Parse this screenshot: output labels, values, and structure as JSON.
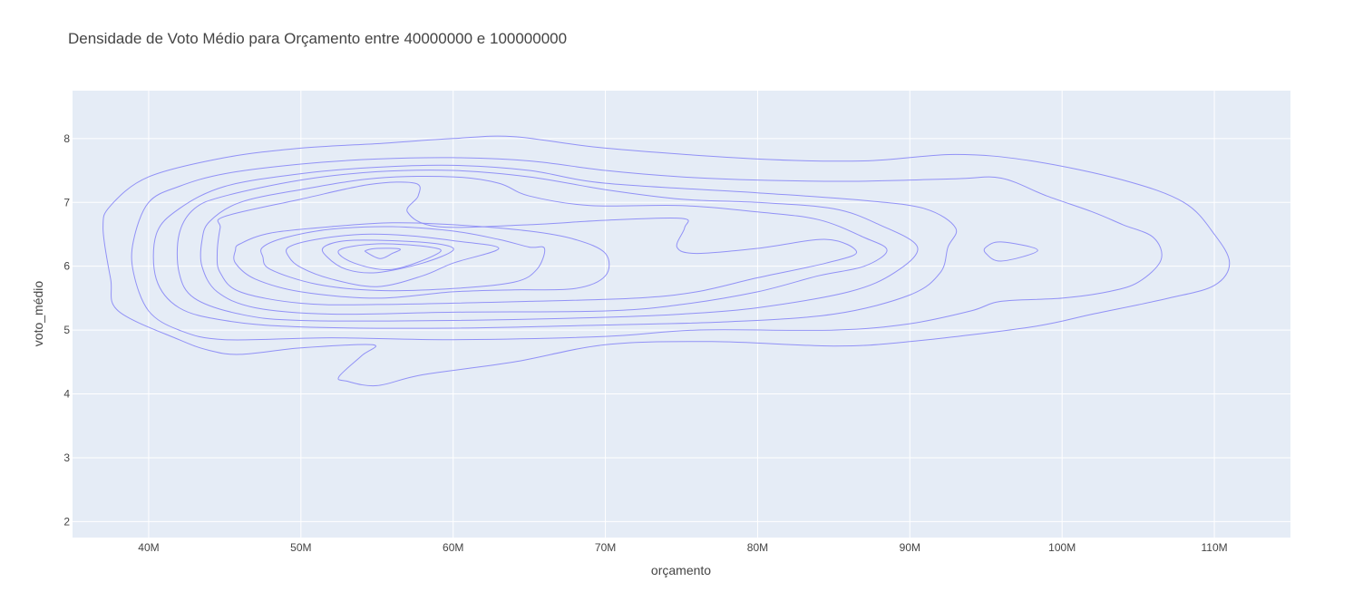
{
  "chart_data": {
    "type": "contour",
    "title": "Densidade de Voto Médio para Orçamento entre 40000000 e 100000000",
    "xlabel": "orçamento",
    "ylabel": "voto_médio",
    "xlim": [
      35000000,
      115000000
    ],
    "ylim": [
      1.75,
      8.75
    ],
    "x_ticks": [
      {
        "value": 40000000,
        "label": "40M"
      },
      {
        "value": 50000000,
        "label": "50M"
      },
      {
        "value": 60000000,
        "label": "60M"
      },
      {
        "value": 70000000,
        "label": "70M"
      },
      {
        "value": 80000000,
        "label": "80M"
      },
      {
        "value": 90000000,
        "label": "90M"
      },
      {
        "value": 100000000,
        "label": "100M"
      },
      {
        "value": 110000000,
        "label": "110M"
      }
    ],
    "y_ticks": [
      {
        "value": 2,
        "label": "2"
      },
      {
        "value": 3,
        "label": "3"
      },
      {
        "value": 4,
        "label": "4"
      },
      {
        "value": 5,
        "label": "5"
      },
      {
        "value": 6,
        "label": "6"
      },
      {
        "value": 7,
        "label": "7"
      },
      {
        "value": 8,
        "label": "8"
      }
    ],
    "grid": true,
    "line_color": "#8c8cf5",
    "background_color": "#e5ecf6",
    "contours": [
      {
        "level": 1,
        "points": [
          [
            37000000,
            6.6
          ],
          [
            37500000,
            6.95
          ],
          [
            40000000,
            7.4
          ],
          [
            45000000,
            7.7
          ],
          [
            50000000,
            7.85
          ],
          [
            55000000,
            7.92
          ],
          [
            60000000,
            8.0
          ],
          [
            64000000,
            8.03
          ],
          [
            70000000,
            7.85
          ],
          [
            80000000,
            7.68
          ],
          [
            87000000,
            7.65
          ],
          [
            93000000,
            7.75
          ],
          [
            98000000,
            7.65
          ],
          [
            104000000,
            7.35
          ],
          [
            108000000,
            7.0
          ],
          [
            110000000,
            6.5
          ],
          [
            111000000,
            6.05
          ],
          [
            110000000,
            5.7
          ],
          [
            107000000,
            5.5
          ],
          [
            102000000,
            5.25
          ],
          [
            98000000,
            5.05
          ],
          [
            90000000,
            4.82
          ],
          [
            85000000,
            4.75
          ],
          [
            77000000,
            4.82
          ],
          [
            70000000,
            4.77
          ],
          [
            64000000,
            4.5
          ],
          [
            58000000,
            4.3
          ],
          [
            55000000,
            4.13
          ],
          [
            53000000,
            4.2
          ],
          [
            52500000,
            4.27
          ],
          [
            54000000,
            4.6
          ],
          [
            54700000,
            4.77
          ],
          [
            50000000,
            4.72
          ],
          [
            46000000,
            4.62
          ],
          [
            44000000,
            4.68
          ],
          [
            42000000,
            4.85
          ],
          [
            38000000,
            5.3
          ],
          [
            37500000,
            5.8
          ],
          [
            37000000,
            6.6
          ]
        ]
      },
      {
        "level": 2,
        "points": [
          [
            39000000,
            6.4
          ],
          [
            40000000,
            7.0
          ],
          [
            42000000,
            7.25
          ],
          [
            45000000,
            7.45
          ],
          [
            50000000,
            7.6
          ],
          [
            55000000,
            7.68
          ],
          [
            60000000,
            7.7
          ],
          [
            65000000,
            7.65
          ],
          [
            70000000,
            7.5
          ],
          [
            75000000,
            7.4
          ],
          [
            80000000,
            7.35
          ],
          [
            86000000,
            7.33
          ],
          [
            93000000,
            7.37
          ],
          [
            96000000,
            7.38
          ],
          [
            99000000,
            7.1
          ],
          [
            102000000,
            6.85
          ],
          [
            104000000,
            6.65
          ],
          [
            106000000,
            6.45
          ],
          [
            106500000,
            6.1
          ],
          [
            105000000,
            5.75
          ],
          [
            103000000,
            5.6
          ],
          [
            100000000,
            5.5
          ],
          [
            96000000,
            5.45
          ],
          [
            94000000,
            5.3
          ],
          [
            90000000,
            5.1
          ],
          [
            85000000,
            5.0
          ],
          [
            76000000,
            5.0
          ],
          [
            70000000,
            4.9
          ],
          [
            60000000,
            4.85
          ],
          [
            52000000,
            4.88
          ],
          [
            45000000,
            4.85
          ],
          [
            42000000,
            5.0
          ],
          [
            40000000,
            5.3
          ],
          [
            39000000,
            5.9
          ],
          [
            39000000,
            6.4
          ]
        ]
      },
      {
        "level": 3,
        "points": [
          [
            95000000,
            6.3
          ],
          [
            96000000,
            6.38
          ],
          [
            98400000,
            6.25
          ],
          [
            96000000,
            6.08
          ],
          [
            95000000,
            6.2
          ],
          [
            95000000,
            6.3
          ]
        ]
      },
      {
        "level": 4,
        "points": [
          [
            40500000,
            6.5
          ],
          [
            42000000,
            6.9
          ],
          [
            45000000,
            7.25
          ],
          [
            50000000,
            7.45
          ],
          [
            55000000,
            7.55
          ],
          [
            60000000,
            7.58
          ],
          [
            65000000,
            7.5
          ],
          [
            70000000,
            7.3
          ],
          [
            80000000,
            7.15
          ],
          [
            87000000,
            7.03
          ],
          [
            91000000,
            6.9
          ],
          [
            93000000,
            6.6
          ],
          [
            92500000,
            6.3
          ],
          [
            92000000,
            5.9
          ],
          [
            90000000,
            5.55
          ],
          [
            85000000,
            5.25
          ],
          [
            78000000,
            5.13
          ],
          [
            70000000,
            5.08
          ],
          [
            60000000,
            5.03
          ],
          [
            50000000,
            5.05
          ],
          [
            45000000,
            5.15
          ],
          [
            42000000,
            5.35
          ],
          [
            40500000,
            5.8
          ],
          [
            40500000,
            6.5
          ]
        ]
      },
      {
        "level": 5,
        "points": [
          [
            42000000,
            6.5
          ],
          [
            43000000,
            6.9
          ],
          [
            45000000,
            7.1
          ],
          [
            50000000,
            7.35
          ],
          [
            55000000,
            7.48
          ],
          [
            60000000,
            7.5
          ],
          [
            65000000,
            7.4
          ],
          [
            70000000,
            7.2
          ],
          [
            75000000,
            7.05
          ],
          [
            80000000,
            7.0
          ],
          [
            85000000,
            6.9
          ],
          [
            88000000,
            6.65
          ],
          [
            90500000,
            6.3
          ],
          [
            89000000,
            5.9
          ],
          [
            86000000,
            5.6
          ],
          [
            80000000,
            5.35
          ],
          [
            75000000,
            5.25
          ],
          [
            70000000,
            5.2
          ],
          [
            60000000,
            5.15
          ],
          [
            50000000,
            5.15
          ],
          [
            46000000,
            5.25
          ],
          [
            43000000,
            5.5
          ],
          [
            42000000,
            5.9
          ],
          [
            42000000,
            6.5
          ]
        ]
      },
      {
        "level": 6,
        "points": [
          [
            43500000,
            6.4
          ],
          [
            44000000,
            6.7
          ],
          [
            46000000,
            7.0
          ],
          [
            50000000,
            7.2
          ],
          [
            55000000,
            7.38
          ],
          [
            60000000,
            7.4
          ],
          [
            63000000,
            7.3
          ],
          [
            65000000,
            7.1
          ],
          [
            69000000,
            6.95
          ],
          [
            75000000,
            6.95
          ],
          [
            80000000,
            6.85
          ],
          [
            84000000,
            6.73
          ],
          [
            87000000,
            6.45
          ],
          [
            88500000,
            6.25
          ],
          [
            87000000,
            6.0
          ],
          [
            84000000,
            5.85
          ],
          [
            80000000,
            5.6
          ],
          [
            75000000,
            5.4
          ],
          [
            70000000,
            5.3
          ],
          [
            60000000,
            5.28
          ],
          [
            52000000,
            5.25
          ],
          [
            47000000,
            5.35
          ],
          [
            44500000,
            5.6
          ],
          [
            43500000,
            6.0
          ],
          [
            43500000,
            6.4
          ]
        ]
      },
      {
        "level": 7,
        "points": [
          [
            44500000,
            6.2
          ],
          [
            44700000,
            6.6
          ],
          [
            45000000,
            6.78
          ],
          [
            50000000,
            7.05
          ],
          [
            54500000,
            7.28
          ],
          [
            57500000,
            7.3
          ],
          [
            57700000,
            7.1
          ],
          [
            57000000,
            6.85
          ],
          [
            59000000,
            6.62
          ],
          [
            65000000,
            6.65
          ],
          [
            70000000,
            6.72
          ],
          [
            75000000,
            6.75
          ],
          [
            75200000,
            6.6
          ],
          [
            74700000,
            6.3
          ],
          [
            76000000,
            6.2
          ],
          [
            80000000,
            6.28
          ],
          [
            84500000,
            6.42
          ],
          [
            86500000,
            6.22
          ],
          [
            84500000,
            6.05
          ],
          [
            80000000,
            5.82
          ],
          [
            76000000,
            5.6
          ],
          [
            72000000,
            5.5
          ],
          [
            65000000,
            5.45
          ],
          [
            55000000,
            5.4
          ],
          [
            50000000,
            5.42
          ],
          [
            46000000,
            5.6
          ],
          [
            44700000,
            5.9
          ],
          [
            44500000,
            6.2
          ]
        ]
      },
      {
        "level": 8,
        "points": [
          [
            45700000,
            6.25
          ],
          [
            46000000,
            6.35
          ],
          [
            48000000,
            6.52
          ],
          [
            52000000,
            6.62
          ],
          [
            56000000,
            6.68
          ],
          [
            60000000,
            6.65
          ],
          [
            65000000,
            6.55
          ],
          [
            68000000,
            6.42
          ],
          [
            70000000,
            6.2
          ],
          [
            70000000,
            5.85
          ],
          [
            68000000,
            5.65
          ],
          [
            64000000,
            5.63
          ],
          [
            60000000,
            5.6
          ],
          [
            55000000,
            5.5
          ],
          [
            50000000,
            5.6
          ],
          [
            47000000,
            5.8
          ],
          [
            45700000,
            6.05
          ],
          [
            45700000,
            6.25
          ]
        ]
      },
      {
        "level": 9,
        "points": [
          [
            47500000,
            6.3
          ],
          [
            49000000,
            6.45
          ],
          [
            52000000,
            6.58
          ],
          [
            56000000,
            6.62
          ],
          [
            60000000,
            6.55
          ],
          [
            63000000,
            6.42
          ],
          [
            65000000,
            6.3
          ],
          [
            66000000,
            6.28
          ],
          [
            65500000,
            5.95
          ],
          [
            64000000,
            5.75
          ],
          [
            60000000,
            5.65
          ],
          [
            55000000,
            5.62
          ],
          [
            51000000,
            5.72
          ],
          [
            48000000,
            5.95
          ],
          [
            47500000,
            6.15
          ],
          [
            47500000,
            6.3
          ]
        ]
      },
      {
        "level": 10,
        "points": [
          [
            49200000,
            6.3
          ],
          [
            51000000,
            6.42
          ],
          [
            54000000,
            6.5
          ],
          [
            57000000,
            6.48
          ],
          [
            60000000,
            6.4
          ],
          [
            63000000,
            6.28
          ],
          [
            60000000,
            6.05
          ],
          [
            58000000,
            5.85
          ],
          [
            55000000,
            5.68
          ],
          [
            52000000,
            5.8
          ],
          [
            50000000,
            5.98
          ],
          [
            49200000,
            6.15
          ],
          [
            49200000,
            6.3
          ]
        ]
      },
      {
        "level": 11,
        "points": [
          [
            51500000,
            6.3
          ],
          [
            53000000,
            6.4
          ],
          [
            56000000,
            6.4
          ],
          [
            59000000,
            6.35
          ],
          [
            60000000,
            6.25
          ],
          [
            58000000,
            6.05
          ],
          [
            55000000,
            5.9
          ],
          [
            53000000,
            5.95
          ],
          [
            51700000,
            6.15
          ],
          [
            51500000,
            6.3
          ]
        ]
      },
      {
        "level": 12,
        "points": [
          [
            52500000,
            6.25
          ],
          [
            55000000,
            6.35
          ],
          [
            58500000,
            6.3
          ],
          [
            59000000,
            6.2
          ],
          [
            56000000,
            5.95
          ],
          [
            53500000,
            6.05
          ],
          [
            52500000,
            6.25
          ]
        ]
      },
      {
        "level": 13,
        "points": [
          [
            54300000,
            6.25
          ],
          [
            55000000,
            6.28
          ],
          [
            56500000,
            6.27
          ],
          [
            56000000,
            6.2
          ],
          [
            55200000,
            6.12
          ],
          [
            54300000,
            6.22
          ],
          [
            54300000,
            6.25
          ]
        ]
      }
    ]
  }
}
